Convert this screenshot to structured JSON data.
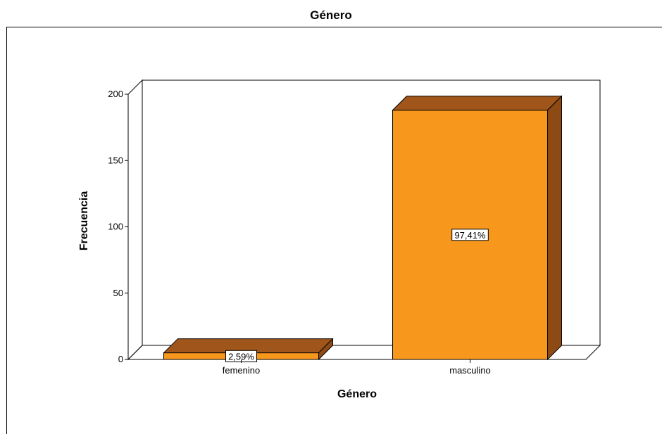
{
  "window": {
    "title": "Género"
  },
  "chart_data": {
    "type": "bar",
    "style": "3d",
    "title": "Género",
    "xlabel": "Género",
    "ylabel": "Frecuencia",
    "categories": [
      "femenino",
      "masculino"
    ],
    "values": [
      5,
      188
    ],
    "data_labels": [
      "2,59%",
      "97,41%"
    ],
    "ylim": [
      0,
      200
    ],
    "yticks": [
      0,
      50,
      100,
      150,
      200
    ],
    "grid": false,
    "legend": "none",
    "colors": {
      "front": "#F7981D",
      "top": "#A0561A",
      "side": "#8E4A14",
      "frame": "#000000"
    }
  }
}
